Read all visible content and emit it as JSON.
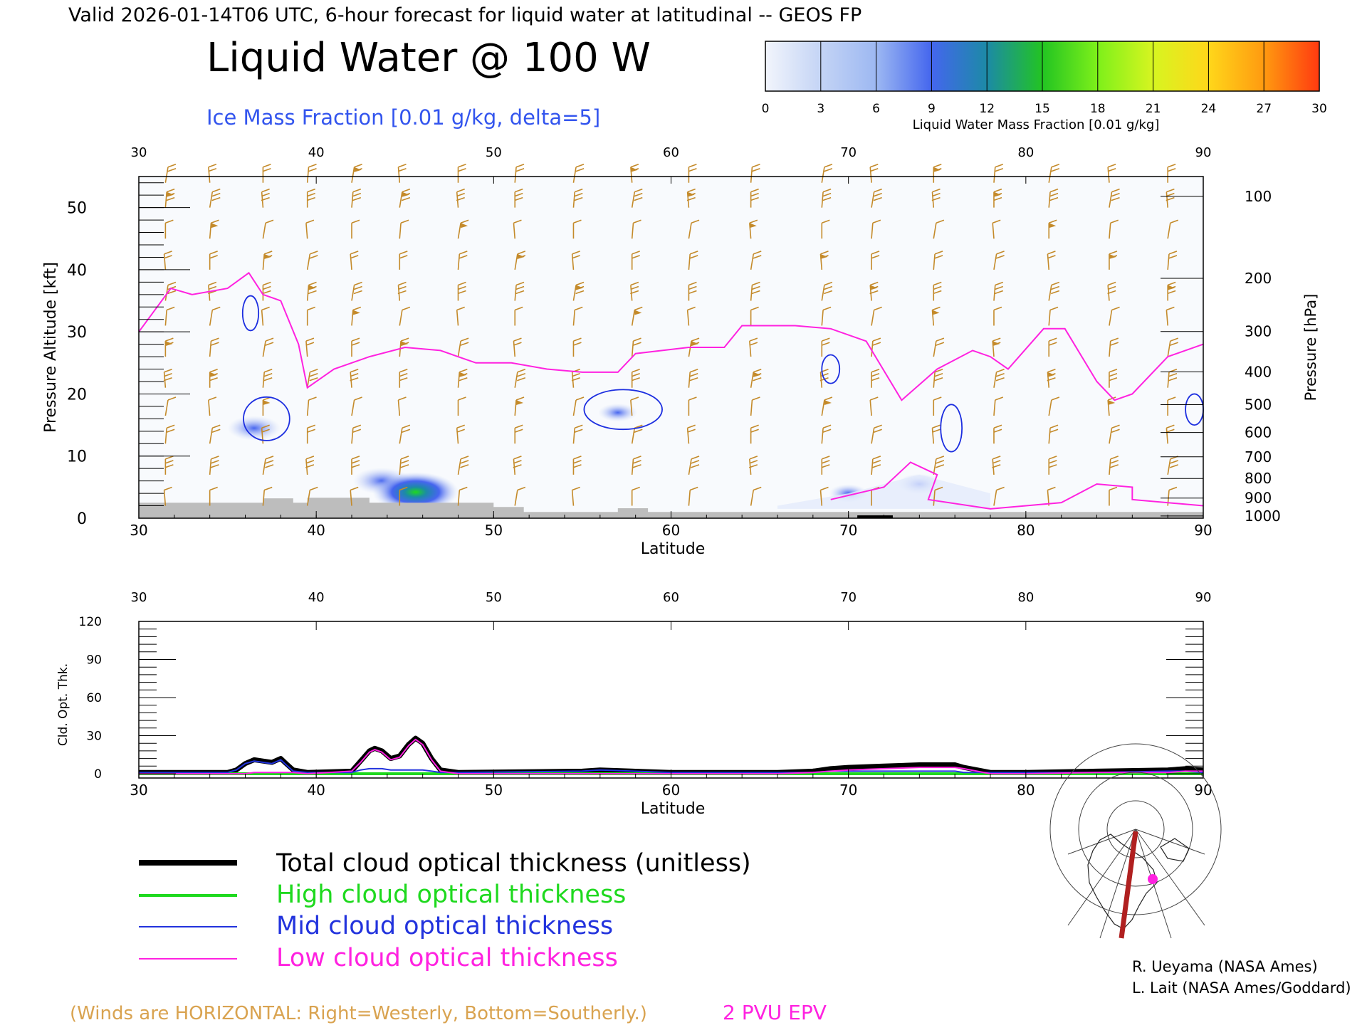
{
  "header": {
    "valid_line": "Valid 2026-01-14T06 UTC, 6-hour forecast for liquid water at latitudinal -- GEOS FP",
    "title": "Liquid Water @ 100 W",
    "subtitle": "Ice Mass Fraction [0.01 g/kg, delta=5]"
  },
  "colorbar": {
    "ticks": [
      "0",
      "3",
      "6",
      "9",
      "12",
      "15",
      "18",
      "21",
      "24",
      "27",
      "30"
    ],
    "label": "Liquid Water Mass Fraction [0.01 g/kg]",
    "colors": [
      "#f2f5fc",
      "#c4d4f5",
      "#9db8f2",
      "#4466ee",
      "#1c8aa6",
      "#22c422",
      "#7ef01a",
      "#d7f520",
      "#ffd71a",
      "#ff9a10",
      "#ff3a10"
    ]
  },
  "colors": {
    "wind": "#c48a2a",
    "epv": "#ff22e0",
    "ice_contour": "#1c2ee0",
    "terrain": "#bdbdbd",
    "total": "#000000",
    "high": "#1ed91e",
    "mid": "#2233dd",
    "low": "#ff22e0"
  },
  "chart_data": [
    {
      "type": "heatmap",
      "xlabel": "Latitude",
      "ylabel": "Pressure Altitude [kft]",
      "ylabel_right": "Pressure [hPa]",
      "xlim": [
        30,
        90
      ],
      "ylim": [
        0,
        55
      ],
      "x_ticks": [
        "30",
        "40",
        "50",
        "60",
        "70",
        "80",
        "90"
      ],
      "y_ticks": [
        "0",
        "10",
        "20",
        "30",
        "40",
        "50"
      ],
      "pressure_ticks": [
        "100",
        "200",
        "300",
        "400",
        "500",
        "600",
        "700",
        "800",
        "900",
        "1000"
      ],
      "epv_2pvu_kft": [
        [
          30,
          30
        ],
        [
          31.8,
          37
        ],
        [
          33,
          36
        ],
        [
          35,
          37
        ],
        [
          36.2,
          39.5
        ],
        [
          37,
          36
        ],
        [
          38,
          35
        ],
        [
          39,
          28
        ],
        [
          39.5,
          21
        ],
        [
          41,
          24
        ],
        [
          43,
          26
        ],
        [
          45,
          27.5
        ],
        [
          47,
          27
        ],
        [
          49,
          25
        ],
        [
          51,
          25
        ],
        [
          53,
          24
        ],
        [
          55,
          23.5
        ],
        [
          57,
          23.5
        ],
        [
          58,
          26.5
        ],
        [
          61,
          27.5
        ],
        [
          63,
          27.5
        ],
        [
          64,
          31
        ],
        [
          67,
          31
        ],
        [
          69,
          30.5
        ],
        [
          71,
          28.5
        ],
        [
          73,
          19
        ],
        [
          75,
          24
        ],
        [
          77,
          27
        ],
        [
          78,
          26
        ],
        [
          79,
          24
        ],
        [
          81,
          30.5
        ],
        [
          82.2,
          30.5
        ],
        [
          84,
          22
        ],
        [
          85,
          19
        ],
        [
          86,
          20
        ],
        [
          88,
          26
        ],
        [
          90,
          28
        ]
      ],
      "ice_contours": [
        {
          "lat": 36.3,
          "kft": 33,
          "rx": 0.45,
          "ry": 2.8
        },
        {
          "lat": 37.2,
          "kft": 16,
          "rx": 1.3,
          "ry": 3.5
        },
        {
          "lat": 57.3,
          "kft": 17.5,
          "rx": 2.2,
          "ry": 3.2
        },
        {
          "lat": 69,
          "kft": 24,
          "rx": 0.5,
          "ry": 2.3
        },
        {
          "lat": 75.8,
          "kft": 14.5,
          "rx": 0.6,
          "ry": 3.8
        },
        {
          "lat": 89.5,
          "kft": 17.5,
          "rx": 0.5,
          "ry": 2.5
        }
      ],
      "liquid_blobs": [
        {
          "lat": 36.5,
          "kft": 14.5,
          "value": 5
        },
        {
          "lat": 43.7,
          "kft": 6,
          "value": 6
        },
        {
          "lat": 45.6,
          "kft": 4.2,
          "value": 12
        },
        {
          "lat": 57,
          "kft": 17,
          "value": 2
        },
        {
          "lat": 74,
          "kft": 5.5,
          "value": 3
        },
        {
          "lat": 70,
          "kft": 4,
          "value": 2
        }
      ],
      "annotation_left": "(Winds are HORIZONTAL: Right=Westerly, Bottom=Southerly.)",
      "annotation_right": "2 PVU EPV"
    },
    {
      "type": "line",
      "xlabel": "Latitude",
      "ylabel": "Cld. Opt. Thk.",
      "xlim": [
        30,
        90
      ],
      "ylim": [
        0,
        120
      ],
      "x_ticks": [
        "30",
        "40",
        "50",
        "60",
        "70",
        "80",
        "90"
      ],
      "y_ticks": [
        "0",
        "30",
        "60",
        "90",
        "120"
      ],
      "x": [
        30,
        35,
        35.5,
        36,
        36.5,
        37,
        37.5,
        38,
        38.3,
        38.7,
        39.5,
        42,
        42.5,
        43,
        43.3,
        43.7,
        44.2,
        44.7,
        45.2,
        45.6,
        46,
        46.5,
        47,
        48,
        55,
        56,
        60,
        66,
        68,
        69,
        70,
        72,
        74,
        76,
        76.5,
        78,
        80,
        84,
        88,
        89,
        90
      ],
      "series": [
        {
          "name": "Total cloud optical thickness (unitless)",
          "values": [
            1,
            1,
            3,
            8,
            11,
            10,
            9,
            12,
            8,
            3,
            1,
            2,
            10,
            18,
            20,
            18,
            12,
            14,
            23,
            28,
            24,
            12,
            3,
            1,
            2,
            3,
            1,
            1,
            2,
            4,
            5,
            6,
            7,
            7,
            5,
            1,
            1,
            2,
            3,
            4,
            3
          ]
        },
        {
          "name": "High cloud optical thickness",
          "values": [
            0,
            0,
            0,
            0,
            0,
            0,
            0,
            0,
            0,
            0,
            0,
            0,
            0,
            0,
            0,
            0,
            0,
            0,
            0,
            0,
            0,
            0,
            0,
            0,
            0,
            0,
            0,
            0,
            0,
            0,
            0,
            0,
            0,
            0,
            0,
            0,
            0,
            0,
            0,
            0,
            0
          ]
        },
        {
          "name": "Mid cloud optical thickness",
          "values": [
            1,
            1,
            3,
            8,
            10,
            9,
            8,
            11,
            7,
            2,
            1,
            1,
            3,
            4,
            4,
            4,
            3,
            3,
            3,
            3,
            3,
            2,
            1,
            1,
            2,
            3,
            1,
            1,
            1,
            2,
            2,
            2,
            2,
            2,
            1,
            1,
            1,
            1,
            2,
            2,
            1
          ]
        },
        {
          "name": "Low cloud optical thickness",
          "values": [
            0,
            0,
            0,
            0,
            1,
            1,
            1,
            1,
            1,
            1,
            0,
            2,
            9,
            17,
            19,
            17,
            11,
            13,
            22,
            27,
            23,
            11,
            2,
            0,
            0,
            0,
            0,
            0,
            1,
            2,
            3,
            4,
            5,
            5,
            4,
            0,
            0,
            1,
            1,
            2,
            2
          ]
        }
      ]
    }
  ],
  "legend": {
    "items": [
      {
        "label": "Total cloud optical thickness (unitless)"
      },
      {
        "label": "High cloud optical thickness"
      },
      {
        "label": "Mid cloud optical thickness"
      },
      {
        "label": "Low cloud optical thickness"
      }
    ]
  },
  "credits": {
    "line1": "R. Ueyama (NASA Ames)",
    "line2": "L. Lait (NASA Ames/Goddard)"
  }
}
